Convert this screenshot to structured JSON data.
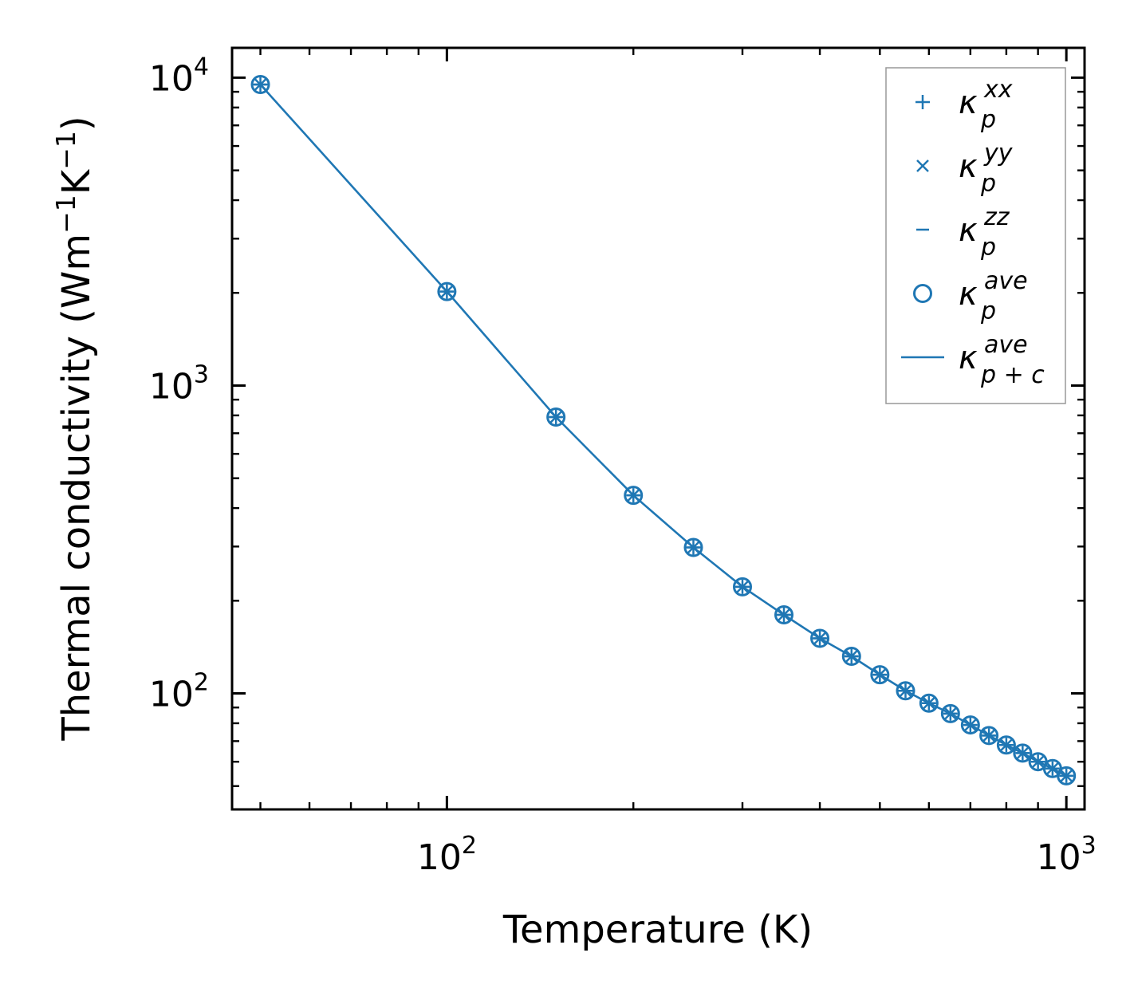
{
  "chart_data": {
    "type": "line",
    "title": "",
    "xlabel": "Temperature (K)",
    "ylabel": {
      "text": "Thermal conductivity (Wm",
      "sup1": "−1",
      "mid": "K",
      "sup2": "−1",
      "end": ")"
    },
    "xscale": "log",
    "yscale": "log",
    "xlim": [
      45,
      1070
    ],
    "ylim": [
      42,
      12500
    ],
    "x_ticks": [
      {
        "value": 100,
        "base": "10",
        "exp": "2"
      },
      {
        "value": 1000,
        "base": "10",
        "exp": "3"
      }
    ],
    "y_ticks": [
      {
        "value": 100,
        "base": "10",
        "exp": "2"
      },
      {
        "value": 1000,
        "base": "10",
        "exp": "3"
      },
      {
        "value": 10000,
        "base": "10",
        "exp": "4"
      }
    ],
    "x": [
      50,
      100,
      150,
      200,
      250,
      300,
      350,
      400,
      450,
      500,
      550,
      600,
      650,
      700,
      750,
      800,
      850,
      900,
      950,
      1000
    ],
    "series": [
      {
        "name": "κp^xx",
        "label_base": "κ",
        "label_sub": "p",
        "label_sup": "xx",
        "marker": "plus",
        "values": [
          9500,
          2020,
          790,
          440,
          298,
          222,
          180,
          151,
          132,
          115,
          102,
          93,
          86,
          79,
          73,
          68,
          64,
          60,
          57,
          54
        ]
      },
      {
        "name": "κp^yy",
        "label_base": "κ",
        "label_sub": "p",
        "label_sup": "yy",
        "marker": "x",
        "values": [
          9500,
          2020,
          790,
          440,
          298,
          222,
          180,
          151,
          132,
          115,
          102,
          93,
          86,
          79,
          73,
          68,
          64,
          60,
          57,
          54
        ]
      },
      {
        "name": "κp^zz",
        "label_base": "κ",
        "label_sub": "p",
        "label_sup": "zz",
        "marker": "hline",
        "values": [
          9500,
          2020,
          790,
          440,
          298,
          222,
          180,
          151,
          132,
          115,
          102,
          93,
          86,
          79,
          73,
          68,
          64,
          60,
          57,
          54
        ]
      },
      {
        "name": "κp^ave",
        "label_base": "κ",
        "label_sub": "p",
        "label_sup": "ave",
        "marker": "circle",
        "values": [
          9500,
          2020,
          790,
          440,
          298,
          222,
          180,
          151,
          132,
          115,
          102,
          93,
          86,
          79,
          73,
          68,
          64,
          60,
          57,
          54
        ]
      },
      {
        "name": "κp+c^ave",
        "label_base": "κ",
        "label_sub": "p + c",
        "label_sup": "ave",
        "marker": "line",
        "values": [
          9500,
          2020,
          790,
          440,
          298,
          222,
          180,
          151,
          132,
          115,
          102,
          93,
          86,
          79,
          73,
          68,
          64,
          60,
          57,
          54
        ]
      }
    ],
    "legend": "top-right",
    "grid": false,
    "color": "#1f77b4"
  }
}
